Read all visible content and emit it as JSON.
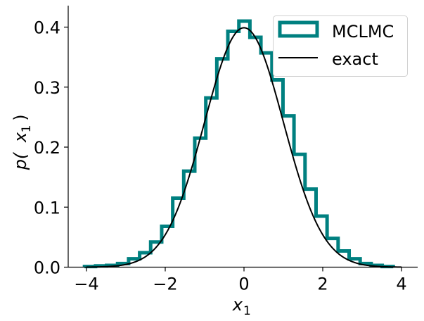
{
  "chart_data": {
    "type": "bar",
    "title": "",
    "xlabel": "x_1",
    "ylabel": "p(x_1)",
    "xlim": [
      -4.4,
      4.45
    ],
    "ylim": [
      0,
      0.435
    ],
    "xticks": [
      -4,
      -2,
      0,
      2,
      4
    ],
    "xtick_labels": [
      "−4",
      "−2",
      "0",
      "2",
      "4"
    ],
    "yticks": [
      0.0,
      0.1,
      0.2,
      0.3,
      0.4
    ],
    "ytick_labels": [
      "0.0",
      "0.1",
      "0.2",
      "0.3",
      "0.4"
    ],
    "grid": false,
    "legend_position": "upper right",
    "legend": [
      "MCLMC",
      "exact"
    ],
    "series": [
      {
        "name": "MCLMC",
        "kind": "step-histogram",
        "color": "#008080",
        "bin_edges": [
          -4.05,
          -3.77,
          -3.49,
          -3.21,
          -2.93,
          -2.65,
          -2.37,
          -2.09,
          -1.81,
          -1.53,
          -1.25,
          -0.97,
          -0.69,
          -0.41,
          -0.13,
          0.15,
          0.43,
          0.71,
          0.99,
          1.27,
          1.55,
          1.83,
          2.11,
          2.39,
          2.67,
          2.95,
          3.23,
          3.51,
          3.79
        ],
        "values": [
          0.001,
          0.002,
          0.003,
          0.006,
          0.014,
          0.024,
          0.042,
          0.068,
          0.115,
          0.16,
          0.215,
          0.282,
          0.347,
          0.393,
          0.41,
          0.383,
          0.357,
          0.312,
          0.252,
          0.188,
          0.13,
          0.085,
          0.048,
          0.027,
          0.014,
          0.006,
          0.003,
          0.001
        ]
      },
      {
        "name": "exact",
        "kind": "line",
        "color": "#000000",
        "function": "standard normal pdf",
        "x_range": [
          -4,
          4
        ]
      }
    ]
  },
  "axes": {
    "xlabel_main": "x",
    "xlabel_sub": "1",
    "ylabel_prefix": "p(",
    "ylabel_var": "x",
    "ylabel_sub": "1",
    "ylabel_suffix": ")"
  },
  "legend": {
    "items": [
      {
        "label": "MCLMC",
        "color": "#008080"
      },
      {
        "label": "exact",
        "color": "#000000"
      }
    ]
  }
}
